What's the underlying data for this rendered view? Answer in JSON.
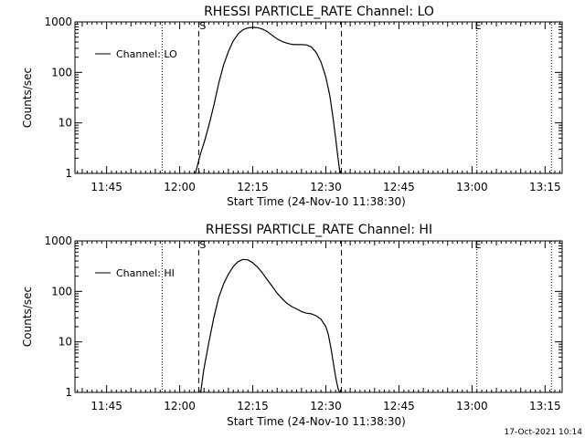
{
  "footer_timestamp": "17-Oct-2021 10:14",
  "chart_data": [
    {
      "type": "line",
      "title": "RHESSI PARTICLE_RATE Channel: LO",
      "xlabel": "Start Time (24-Nov-10 11:38:30)",
      "ylabel": "Counts/sec",
      "yscale": "log",
      "ylim": [
        1,
        1000
      ],
      "xlim_minutes": [
        38.5,
        138.5
      ],
      "x_ticks": [
        {
          "t": 45,
          "label": "11:45"
        },
        {
          "t": 60,
          "label": "12:00"
        },
        {
          "t": 75,
          "label": "12:15"
        },
        {
          "t": 90,
          "label": "12:30"
        },
        {
          "t": 105,
          "label": "12:45"
        },
        {
          "t": 120,
          "label": "13:00"
        },
        {
          "t": 135,
          "label": "13:15"
        }
      ],
      "y_ticks": [
        {
          "v": 1,
          "label": "1"
        },
        {
          "v": 10,
          "label": "10"
        },
        {
          "v": 100,
          "label": "100"
        },
        {
          "v": 1000,
          "label": "1000"
        }
      ],
      "dotted_lines_minutes": [
        56.4,
        121.0,
        136.3
      ],
      "dashed_lines_minutes": [
        63.9,
        93.2
      ],
      "markers": [
        {
          "t": 63.9,
          "label": "S"
        },
        {
          "t": 120.4,
          "label": "E"
        }
      ],
      "legend": {
        "entry": "Channel: LO",
        "position": "top-left"
      },
      "series": [
        {
          "name": "Channel: LO",
          "x": [
            63.2,
            63.7,
            64.3,
            65.0,
            66.0,
            67.0,
            68.0,
            69.0,
            70.0,
            71.0,
            72.0,
            73.0,
            74.0,
            75.0,
            76.0,
            77.0,
            78.0,
            79.0,
            80.0,
            81.0,
            82.0,
            83.0,
            84.0,
            85.0,
            86.0,
            87.0,
            88.0,
            89.0,
            90.0,
            90.8,
            91.5,
            92.0,
            92.5,
            92.9
          ],
          "values": [
            1,
            1.5,
            2.5,
            4,
            9,
            22,
            60,
            140,
            260,
            420,
            580,
            700,
            760,
            780,
            770,
            720,
            640,
            540,
            460,
            410,
            380,
            360,
            355,
            355,
            350,
            320,
            250,
            160,
            80,
            35,
            12,
            5,
            2,
            1
          ]
        }
      ]
    },
    {
      "type": "line",
      "title": "RHESSI PARTICLE_RATE Channel: HI",
      "xlabel": "Start Time (24-Nov-10 11:38:30)",
      "ylabel": "Counts/sec",
      "yscale": "log",
      "ylim": [
        1,
        1000
      ],
      "xlim_minutes": [
        38.5,
        138.5
      ],
      "x_ticks": [
        {
          "t": 45,
          "label": "11:45"
        },
        {
          "t": 60,
          "label": "12:00"
        },
        {
          "t": 75,
          "label": "12:15"
        },
        {
          "t": 90,
          "label": "12:30"
        },
        {
          "t": 105,
          "label": "12:45"
        },
        {
          "t": 120,
          "label": "13:00"
        },
        {
          "t": 135,
          "label": "13:15"
        }
      ],
      "y_ticks": [
        {
          "v": 1,
          "label": "1"
        },
        {
          "v": 10,
          "label": "10"
        },
        {
          "v": 100,
          "label": "100"
        },
        {
          "v": 1000,
          "label": "1000"
        }
      ],
      "dotted_lines_minutes": [
        56.4,
        121.0,
        136.3
      ],
      "dashed_lines_minutes": [
        63.9,
        93.2
      ],
      "markers": [
        {
          "t": 63.9,
          "label": "S"
        },
        {
          "t": 120.4,
          "label": "E"
        }
      ],
      "legend": {
        "entry": "Channel: HI",
        "position": "top-left"
      },
      "series": [
        {
          "name": "Channel: HI",
          "x": [
            64.3,
            65.0,
            66.0,
            67.0,
            68.0,
            69.0,
            70.0,
            71.0,
            72.0,
            73.0,
            74.0,
            75.0,
            76.0,
            77.0,
            78.0,
            79.0,
            80.0,
            81.0,
            82.0,
            83.0,
            84.0,
            85.0,
            86.0,
            87.0,
            88.0,
            89.0,
            90.0,
            90.5,
            91.0,
            91.5,
            92.0,
            92.5,
            92.8
          ],
          "values": [
            1,
            3,
            10,
            30,
            75,
            140,
            220,
            310,
            390,
            430,
            420,
            370,
            300,
            230,
            170,
            125,
            92,
            72,
            58,
            50,
            45,
            40,
            37,
            36,
            33,
            28,
            20,
            14,
            8,
            4,
            2,
            1.2,
            1
          ]
        }
      ]
    }
  ]
}
